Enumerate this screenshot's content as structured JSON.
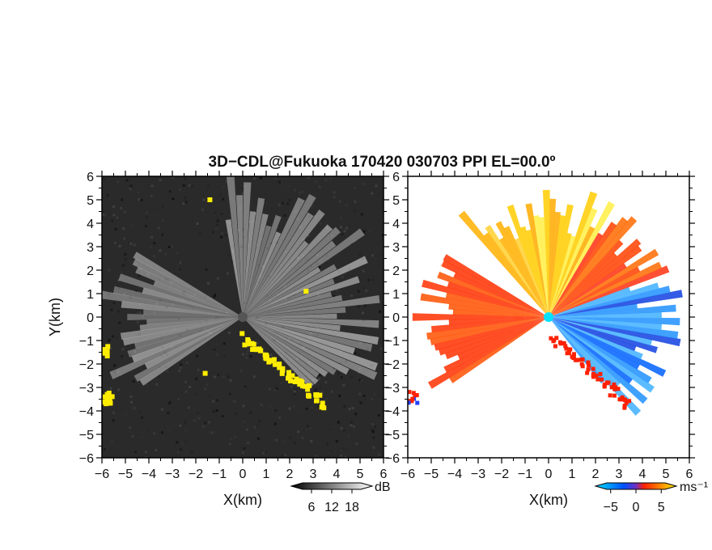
{
  "chart_data": [
    {
      "type": "heatmap",
      "title": "3D−CDL@Fukuoka 170420 030703 PPI EL=00.0º",
      "xlabel": "X(km)",
      "ylabel": "Y(km)",
      "xlim": [
        -6,
        6
      ],
      "ylim": [
        -6,
        6
      ],
      "x_ticks": [
        "−6",
        "−5",
        "−4",
        "−3",
        "−2",
        "−1",
        "0",
        "1",
        "2",
        "3",
        "4",
        "5",
        "6"
      ],
      "y_ticks": [
        "6",
        "5",
        "4",
        "3",
        "2",
        "1",
        "0",
        "−1",
        "−2",
        "−3",
        "−4",
        "−5",
        "−6"
      ],
      "colorbar": {
        "unit": "dB",
        "ticks": [
          "6",
          "12",
          "18"
        ],
        "tick_values": [
          6,
          12,
          18
        ],
        "range": [
          0,
          24
        ],
        "colors": [
          "#000000",
          "#ffffff"
        ]
      },
      "overlay_color": "#ffee00",
      "background_color": "#2a2a2a"
    },
    {
      "type": "heatmap",
      "xlabel": "X(km)",
      "xlim": [
        -6,
        6
      ],
      "ylim": [
        -6,
        6
      ],
      "x_ticks": [
        "−6",
        "−5",
        "−4",
        "−3",
        "−2",
        "−1",
        "0",
        "1",
        "2",
        "3",
        "4",
        "5",
        "6"
      ],
      "colorbar": {
        "unit": "ms⁻¹",
        "ticks": [
          "−5",
          "0",
          "5"
        ],
        "tick_values": [
          -5,
          0,
          5
        ],
        "range": [
          -8,
          8
        ],
        "colors": [
          "#00e0ff",
          "#0040ff",
          "#ff2000",
          "#ffff00"
        ]
      },
      "background_color": "#ffffff"
    }
  ]
}
